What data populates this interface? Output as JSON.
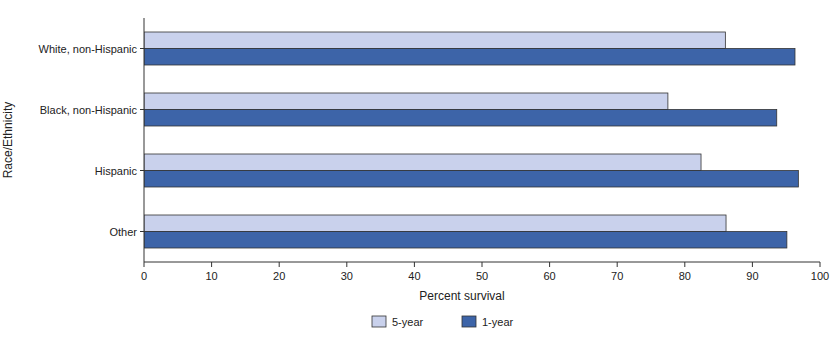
{
  "chart_data": {
    "type": "bar",
    "orientation": "horizontal",
    "x_label": "Percent survival",
    "y_label": "Race/Ethnicity",
    "categories": [
      "White, non-Hispanic",
      "Black, non-Hispanic",
      "Hispanic",
      "Other"
    ],
    "series": [
      {
        "name": "5-year",
        "color": "#c9d1ec",
        "values": [
          86.0,
          77.5,
          82.4,
          86.1
        ]
      },
      {
        "name": "1-year",
        "color": "#3d64a8",
        "values": [
          96.3,
          93.6,
          96.8,
          95.1
        ]
      }
    ],
    "xlim": [
      0,
      100
    ],
    "xticks": [
      0,
      10,
      20,
      30,
      40,
      50,
      60,
      70,
      80,
      90,
      100
    ],
    "grid": false,
    "legend": "bottom"
  }
}
